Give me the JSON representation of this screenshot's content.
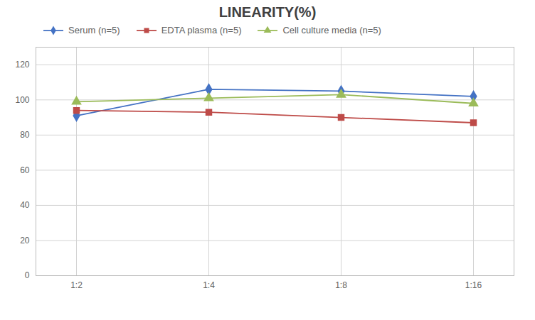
{
  "chart_data": {
    "type": "line",
    "title": "LINEARITY(%)",
    "categories": [
      "1:2",
      "1:4",
      "1:8",
      "1:16"
    ],
    "series": [
      {
        "name": "Serum (n=5)",
        "color": "#4472C4",
        "marker": "diamond",
        "values": [
          91,
          106,
          105,
          102
        ]
      },
      {
        "name": "EDTA plasma (n=5)",
        "color": "#BE4B48",
        "marker": "square",
        "values": [
          94,
          93,
          90,
          87
        ]
      },
      {
        "name": "Cell culture media (n=5)",
        "color": "#9BBB59",
        "marker": "triangle",
        "values": [
          99,
          101,
          103,
          98
        ]
      }
    ],
    "ylim": [
      0,
      130
    ],
    "yticks": [
      0,
      20,
      40,
      60,
      80,
      100,
      120
    ],
    "grid": true,
    "legend": "top"
  }
}
